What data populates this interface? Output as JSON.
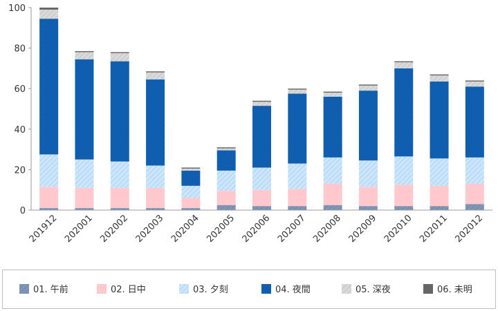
{
  "chart_data": {
    "type": "bar",
    "stacked": true,
    "categories": [
      "201912",
      "202001",
      "202002",
      "202003",
      "202004",
      "202005",
      "202006",
      "202007",
      "202008",
      "202009",
      "202010",
      "202011",
      "202012"
    ],
    "series": [
      {
        "name": "01. 午前",
        "color": "#7f96b8",
        "pattern": "diagonal-stripes",
        "values": [
          1,
          1,
          1,
          1,
          1,
          2.5,
          2,
          2,
          2.5,
          2,
          2,
          2,
          3
        ]
      },
      {
        "name": "02. 日中",
        "color": "#ffc7cc",
        "pattern": "dots",
        "values": [
          10.5,
          10,
          10,
          10,
          5,
          7,
          8,
          8.5,
          10.5,
          9.5,
          10.5,
          10,
          10
        ]
      },
      {
        "name": "03. 夕刻",
        "color": "#c9e6ff",
        "pattern": "diagonal-stripes",
        "values": [
          16,
          14,
          13,
          11,
          6,
          10,
          11,
          12.5,
          13,
          13,
          14,
          13.5,
          13
        ]
      },
      {
        "name": "04. 夜間",
        "color": "#0e5aa7",
        "pattern": "dots",
        "values": [
          67,
          49.5,
          49.5,
          42.5,
          7.5,
          10,
          30.5,
          34.5,
          30,
          34.5,
          43.5,
          38,
          35
        ]
      },
      {
        "name": "05. 深夜",
        "color": "#d9d9d9",
        "pattern": "diagonal-stripes",
        "values": [
          4.5,
          3.5,
          4,
          3.5,
          1,
          1,
          2,
          2,
          2,
          2.5,
          3,
          3,
          2.5
        ]
      },
      {
        "name": "06. 未明",
        "color": "#666666",
        "pattern": "solid",
        "values": [
          1,
          0.5,
          0.5,
          0.5,
          0.5,
          0.5,
          0.5,
          0.5,
          0.5,
          0.5,
          0.5,
          0.5,
          0.5
        ]
      }
    ],
    "ylim": [
      0,
      100
    ],
    "yticks": [
      0,
      20,
      40,
      60,
      80,
      100
    ],
    "grid": false,
    "legend_position": "bottom",
    "title": "",
    "xlabel": "",
    "ylabel": ""
  }
}
